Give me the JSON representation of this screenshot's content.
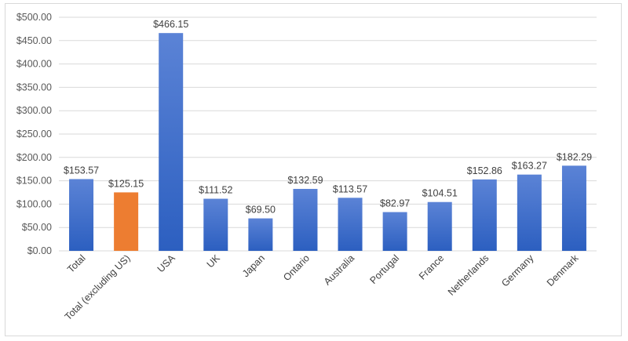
{
  "chart_data": {
    "type": "bar",
    "categories": [
      "Total",
      "Total (excluding US)",
      "USA",
      "UK",
      "Japan",
      "Ontario",
      "Australia",
      "Portugal",
      "France",
      "Netherlands",
      "Germany",
      "Denmark"
    ],
    "values": [
      153.57,
      125.15,
      466.15,
      111.52,
      69.5,
      132.59,
      113.57,
      82.97,
      104.51,
      152.86,
      163.27,
      182.29
    ],
    "data_labels": [
      "$153.57",
      "$125.15",
      "$466.15",
      "$111.52",
      "$69.50",
      "$132.59",
      "$113.57",
      "$82.97",
      "$104.51",
      "$152.86",
      "$163.27",
      "$182.29"
    ],
    "highlight_index": 1,
    "ylim": [
      0,
      500
    ],
    "y_ticks": [
      0,
      50,
      100,
      150,
      200,
      250,
      300,
      350,
      400,
      450,
      500
    ],
    "y_tick_labels": [
      "$0.00",
      "$50.00",
      "$100.00",
      "$150.00",
      "$200.00",
      "$250.00",
      "$300.00",
      "$350.00",
      "$400.00",
      "$450.00",
      "$500.00"
    ],
    "grid": true,
    "legend": "none",
    "colors": {
      "bar_top": "#5b83d6",
      "bar_bottom": "#2c5fc0",
      "highlight": "#ed7d31",
      "grid": "#d9d9d9"
    }
  }
}
